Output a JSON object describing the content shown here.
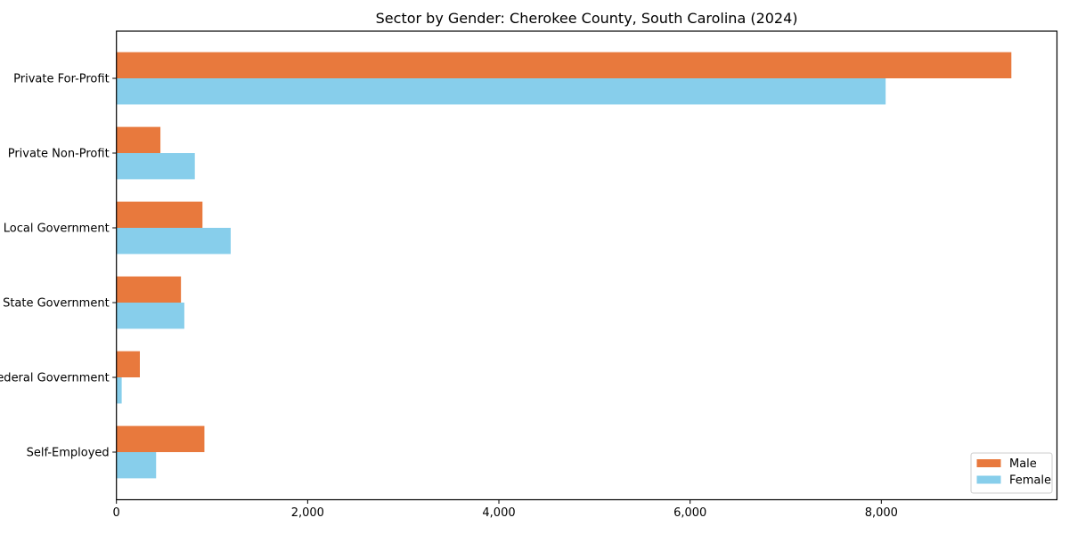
{
  "figure": {
    "background": "#ffffff"
  },
  "chart_data": {
    "type": "bar",
    "orientation": "horizontal",
    "title": "Sector by Gender: Cherokee County, South Carolina (2024)",
    "categories": [
      "Private For-Profit",
      "Private Non-Profit",
      "Local Government",
      "State Government",
      "Federal Government",
      "Self-Employed"
    ],
    "series": [
      {
        "name": "Male",
        "color": "#e8793d",
        "values": [
          9360,
          460,
          900,
          675,
          245,
          920
        ]
      },
      {
        "name": "Female",
        "color": "#87ceeb",
        "values": [
          8045,
          820,
          1195,
          710,
          55,
          415
        ]
      }
    ],
    "xlabel": "",
    "ylabel": "",
    "xlim": [
      0,
      9837
    ],
    "xticks": {
      "values": [
        0,
        2000,
        4000,
        6000,
        8000
      ],
      "labels": [
        "0",
        "2,000",
        "4,000",
        "6,000",
        "8,000"
      ]
    },
    "grid": false,
    "legend": {
      "position": "lower right",
      "labels": [
        "Male",
        "Female"
      ]
    },
    "colors": {
      "axis": "#000000",
      "legend_border": "#cccccc",
      "legend_background": "#ffffff"
    }
  }
}
